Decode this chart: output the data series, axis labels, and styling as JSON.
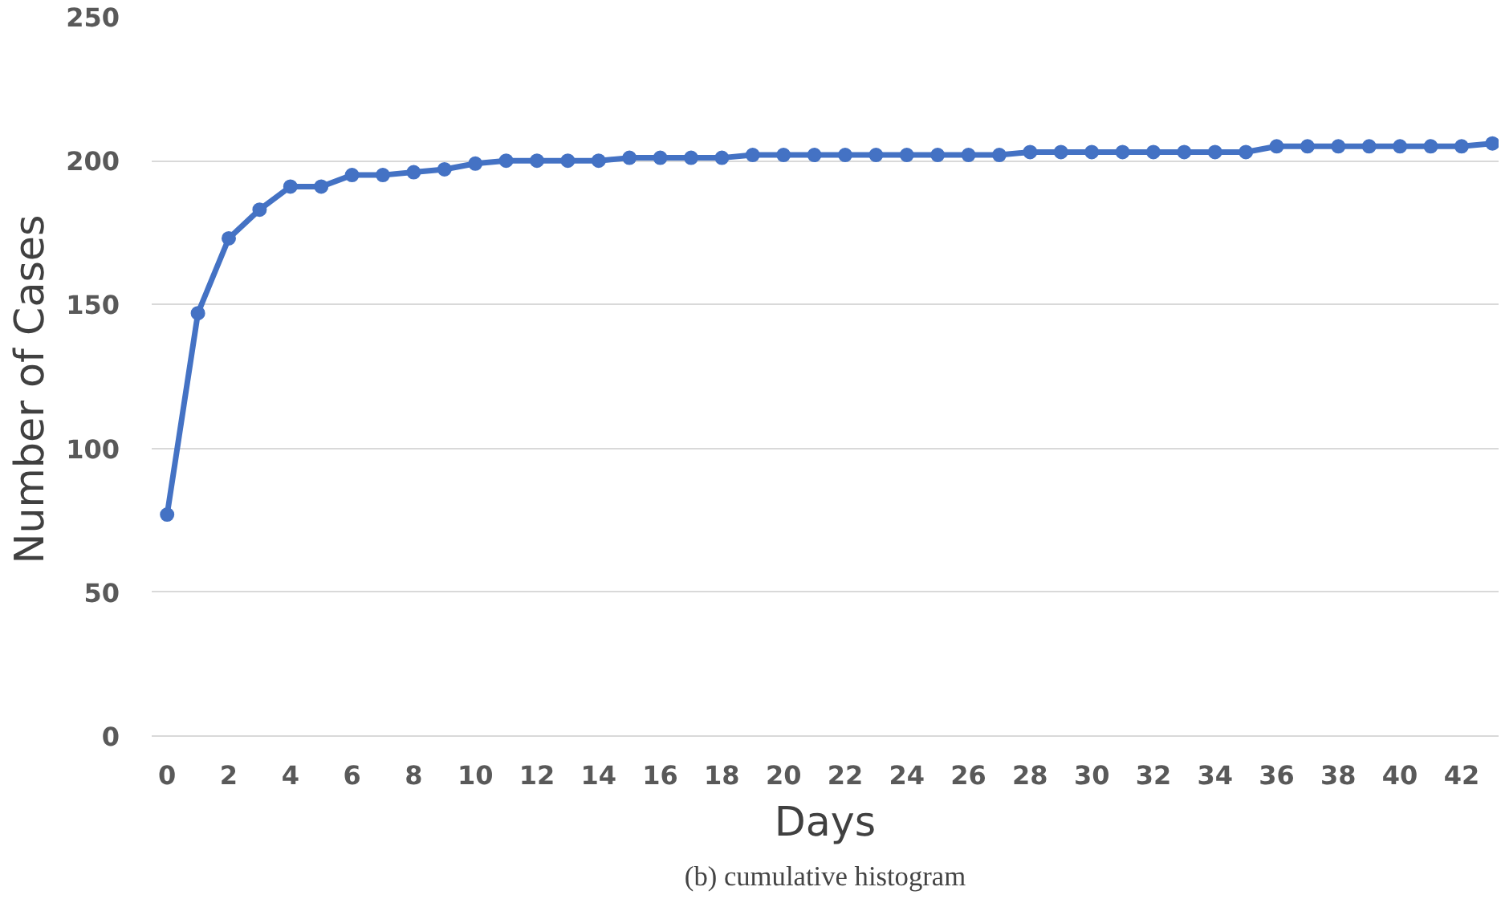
{
  "chart_data": {
    "type": "line",
    "xlabel": "Days",
    "ylabel": "Number  of  Cases",
    "x": [
      0,
      1,
      2,
      3,
      4,
      5,
      6,
      7,
      8,
      9,
      10,
      11,
      12,
      13,
      14,
      15,
      16,
      17,
      18,
      19,
      20,
      21,
      22,
      23,
      24,
      25,
      26,
      27,
      28,
      29,
      30,
      31,
      32,
      33,
      34,
      35,
      36,
      37,
      38,
      39,
      40,
      41,
      42,
      43
    ],
    "series": [
      {
        "color": "#4472c4",
        "values": [
          77,
          147,
          173,
          183,
          191,
          191,
          195,
          195,
          196,
          197,
          199,
          200,
          200,
          200,
          200,
          201,
          201,
          201,
          201,
          202,
          202,
          202,
          202,
          202,
          202,
          202,
          202,
          202,
          203,
          203,
          203,
          203,
          203,
          203,
          203,
          203,
          205,
          205,
          205,
          205,
          205,
          205,
          205,
          206
        ]
      }
    ],
    "xlim": [
      -0.5,
      43.2
    ],
    "ylim": [
      0,
      250
    ],
    "xticks": [
      0,
      2,
      4,
      6,
      8,
      10,
      12,
      14,
      16,
      18,
      20,
      22,
      24,
      26,
      28,
      30,
      32,
      34,
      36,
      38,
      40,
      42
    ],
    "yticks": [
      0,
      50,
      100,
      150,
      200,
      250
    ],
    "grid": "y",
    "marker": "circle",
    "line_style": "solid",
    "annotations": [
      "(b) cumulative histogram"
    ]
  }
}
